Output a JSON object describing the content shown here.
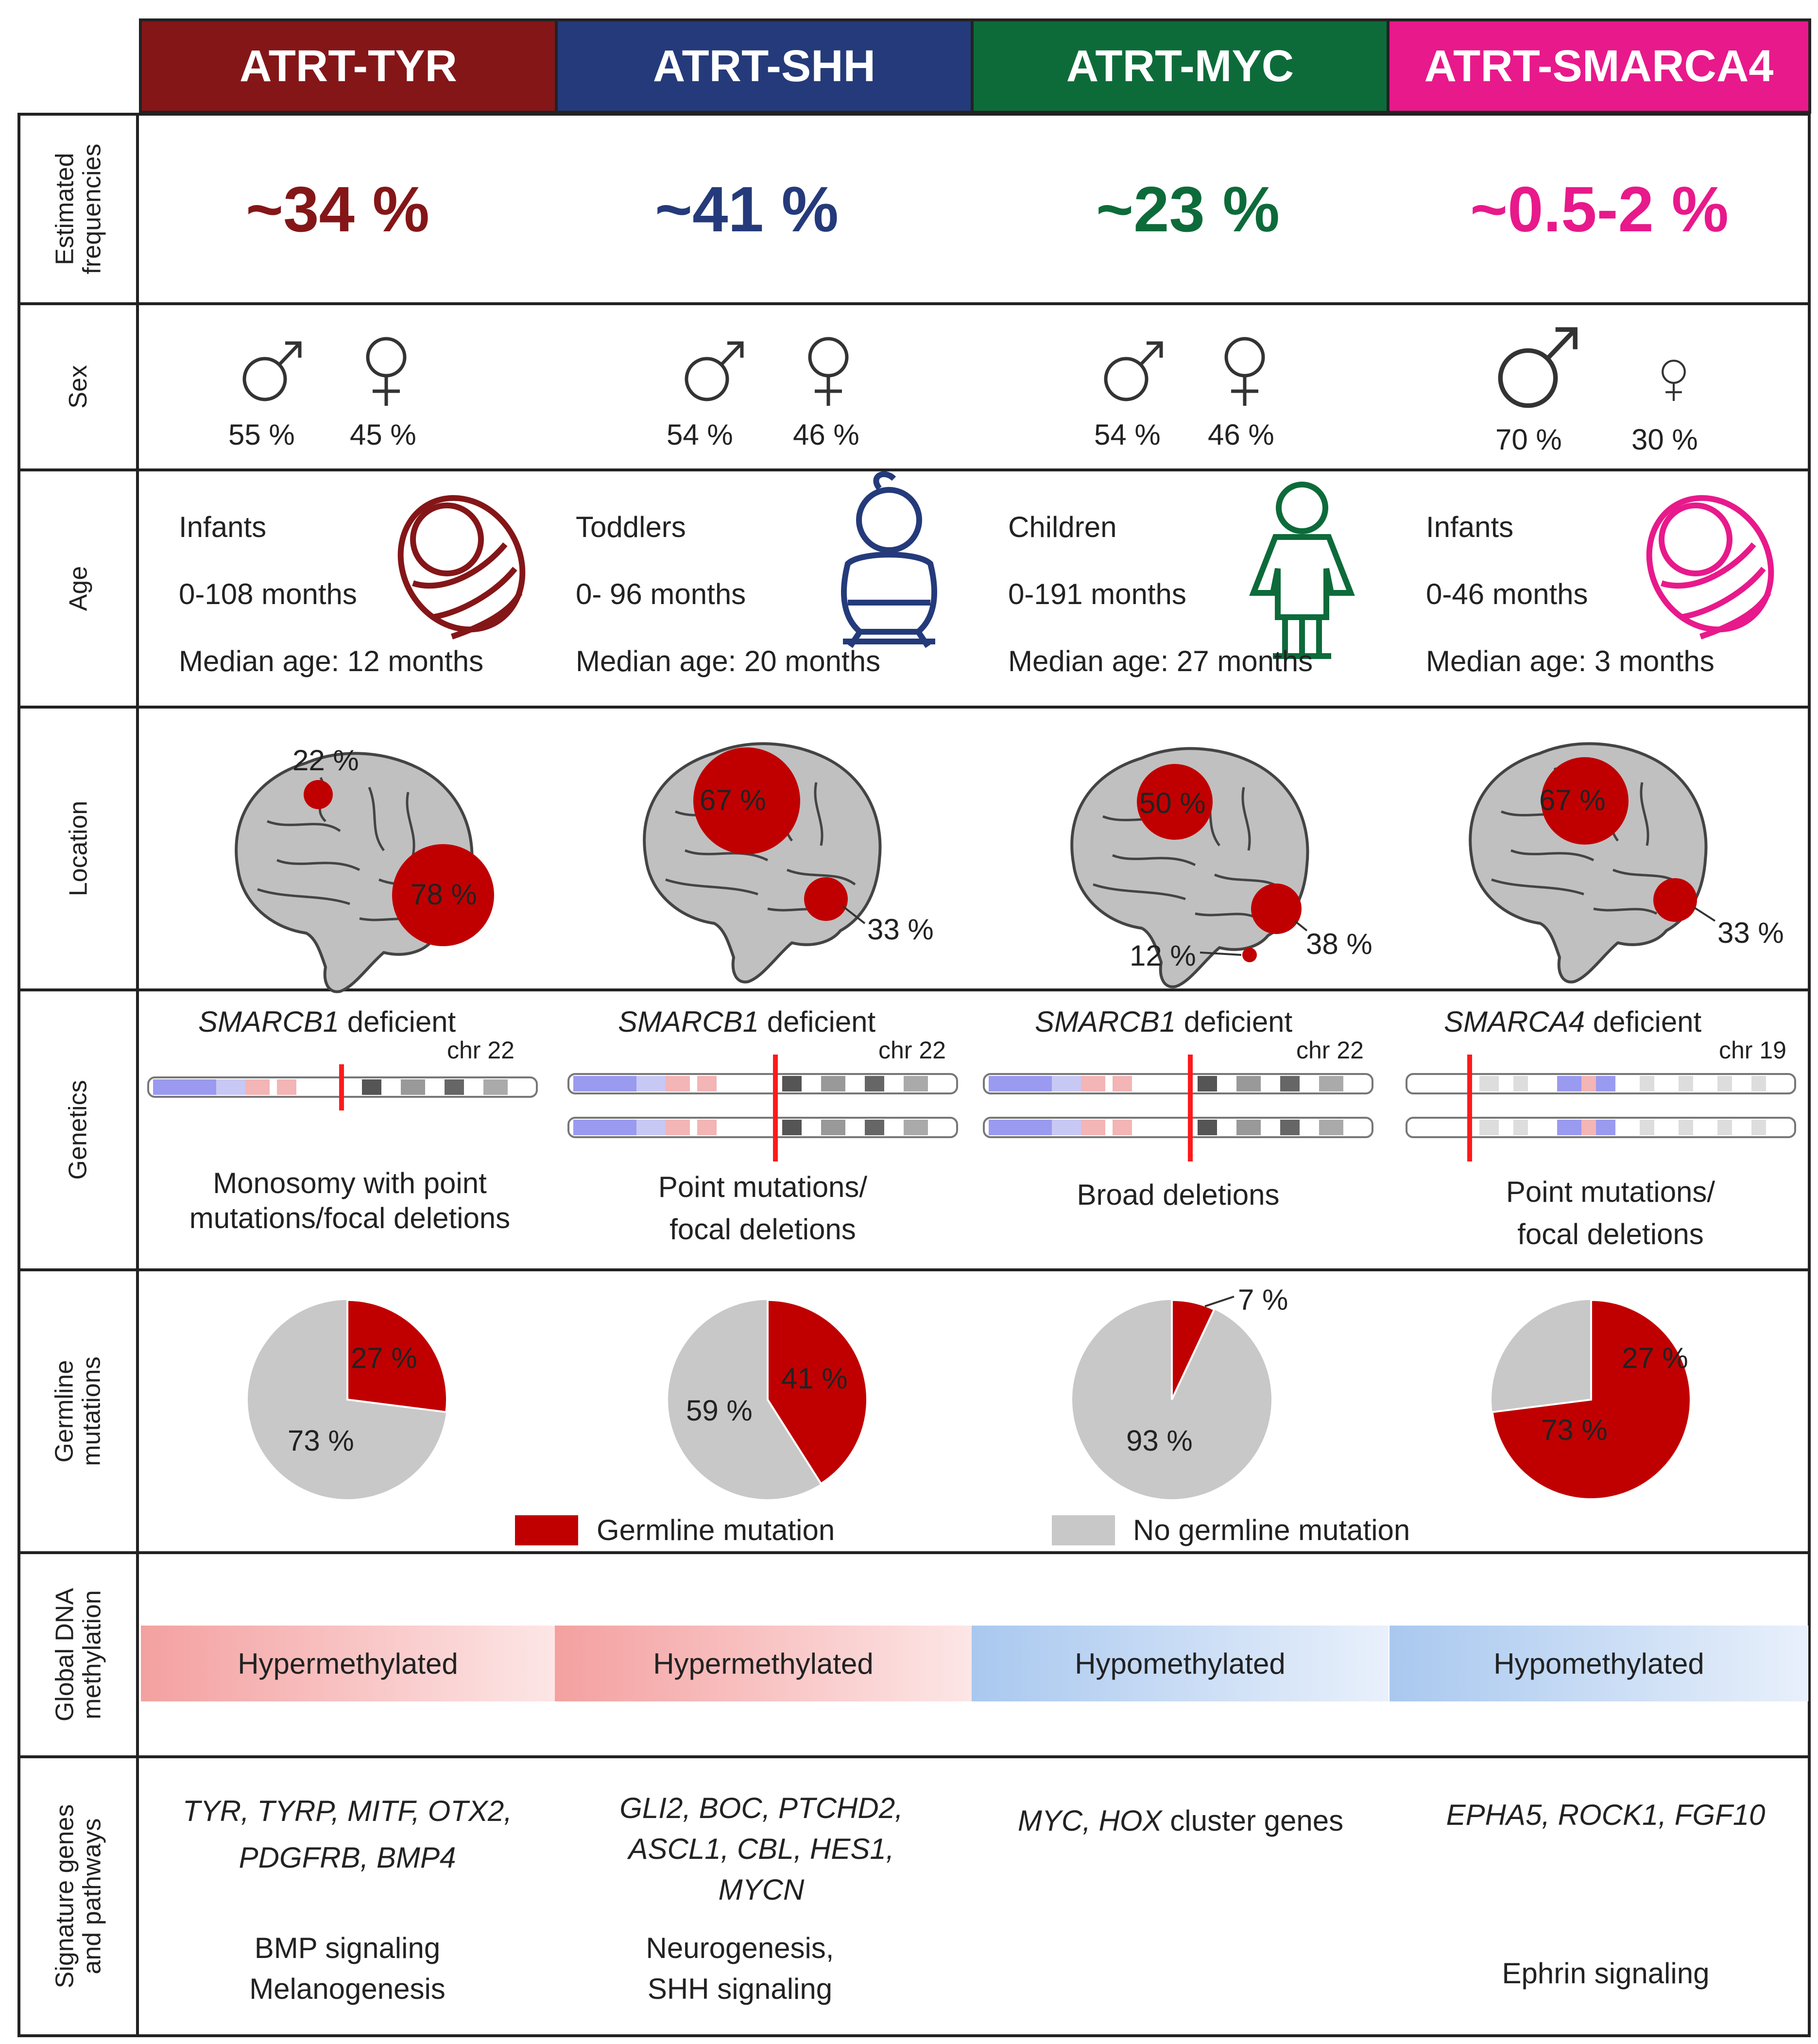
{
  "groups": [
    {
      "name": "ATRT-TYR",
      "color": "#841618",
      "frequency": "~34 %",
      "sex": {
        "male": "55 %",
        "female": "45 %"
      },
      "age": {
        "group": "Infants",
        "range": "0-108 months",
        "median": "Median age: 12 months"
      },
      "location": {
        "labels": [
          "22 %",
          "78 %"
        ]
      },
      "genetics": {
        "gene": "SMARCB1",
        "suffix": " deficient",
        "chr": "chr 22",
        "desc": [
          "Monosomy with point",
          "mutations/focal deletions"
        ]
      },
      "germline": {
        "labels": [
          "27 %",
          "73 %"
        ],
        "germline_pct": 27
      },
      "methylation": "Hypermethylated",
      "signature_genes": [
        "TYR, TYRP, MITF, OTX2,",
        "PDGFRB, BMP4"
      ],
      "pathways": [
        "BMP signaling",
        "Melanogenesis"
      ]
    },
    {
      "name": "ATRT-SHH",
      "color": "#243a7a",
      "frequency": "~41 %",
      "sex": {
        "male": "54 %",
        "female": "46 %"
      },
      "age": {
        "group": "Toddlers",
        "range": "0- 96 months",
        "median": "Median age: 20 months"
      },
      "location": {
        "labels": [
          "67 %",
          "33 %"
        ]
      },
      "genetics": {
        "gene": "SMARCB1",
        "suffix": " deficient",
        "chr": "chr 22",
        "desc": [
          "Point mutations/",
          "focal deletions"
        ]
      },
      "germline": {
        "labels": [
          "41 %",
          "59 %"
        ],
        "germline_pct": 41
      },
      "methylation": "Hypermethylated",
      "signature_genes": [
        "GLI2, BOC, PTCHD2,",
        "ASCL1, CBL, HES1,",
        "MYCN"
      ],
      "pathways": [
        "Neurogenesis,",
        "SHH signaling"
      ]
    },
    {
      "name": "ATRT-MYC",
      "color": "#0d6b3a",
      "frequency": "~23 %",
      "sex": {
        "male": "54 %",
        "female": "46 %"
      },
      "age": {
        "group": "Children",
        "range": "0-191 months",
        "median": "Median age: 27 months"
      },
      "location": {
        "labels": [
          "50 %",
          "38 %",
          "12 %"
        ]
      },
      "genetics": {
        "gene": "SMARCB1",
        "suffix": " deficient",
        "chr": "chr 22",
        "desc": [
          "Broad deletions"
        ]
      },
      "germline": {
        "labels": [
          "7 %",
          "93 %"
        ],
        "germline_pct": 7
      },
      "methylation": "Hypomethylated",
      "signature_genes_italic": "MYC, HOX",
      "signature_genes_plain": " cluster genes",
      "pathways": []
    },
    {
      "name": "ATRT-SMARCA4",
      "color": "#e8198b",
      "frequency": "~0.5-2 %",
      "sex": {
        "male": "70 %",
        "female": "30 %"
      },
      "age": {
        "group": "Infants",
        "range": "0-46 months",
        "median": "Median age: 3 months"
      },
      "location": {
        "labels": [
          "67 %",
          "33 %"
        ]
      },
      "genetics": {
        "gene": "SMARCA4",
        "suffix": " deficient",
        "chr": "chr 19",
        "desc": [
          "Point mutations/",
          "focal deletions"
        ]
      },
      "germline": {
        "labels": [
          "27 %",
          "73 %"
        ],
        "germline_pct": 73
      },
      "methylation": "Hypomethylated",
      "signature_genes": [
        "EPHA5, ROCK1, FGF10"
      ],
      "pathways": [
        "Ephrin signaling"
      ]
    }
  ],
  "row_labels": {
    "frequency": "Estimated\nfrequencies",
    "sex": "Sex",
    "age": "Age",
    "location": "Location",
    "genetics": "Genetics",
    "germline": "Germline\nmutations",
    "methylation": "Global DNA\nmethylation",
    "signature": "Signature genes\nand pathways"
  },
  "legend": {
    "germline": "Germline mutation",
    "no_germline": "No germline mutation"
  },
  "colors": {
    "tumor": "#c00000",
    "brain": "#c0c0c0",
    "pie_grey": "#c8c8c8",
    "hyper": "#f4a0a0",
    "hypo": "#a9c8ef"
  }
}
